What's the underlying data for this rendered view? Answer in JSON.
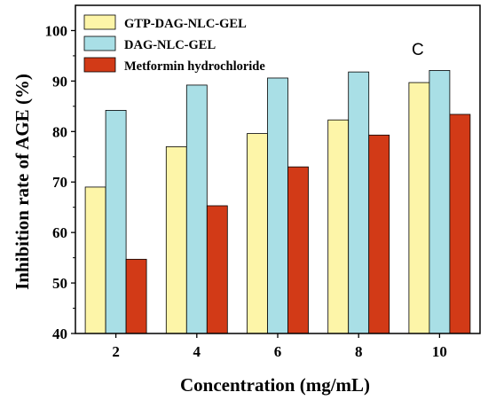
{
  "chart_data": {
    "type": "bar",
    "panel_label": "C",
    "xlabel": "Concentration (mg/mL)",
    "ylabel": "Inhibition rate of AGE (%)",
    "categories": [
      "2",
      "4",
      "6",
      "8",
      "10"
    ],
    "ylim": [
      40,
      105
    ],
    "yticks": [
      "40",
      "50",
      "60",
      "70",
      "80",
      "90",
      "100"
    ],
    "grid": false,
    "legend_position": "top-left",
    "series": [
      {
        "name": "GTP-DAG-NLC-GEL",
        "color": "#fdf5a8",
        "values": [
          69.0,
          77.0,
          79.6,
          82.3,
          89.7
        ]
      },
      {
        "name": "DAG-NLC-GEL",
        "color": "#a9dfe6",
        "values": [
          84.2,
          89.2,
          90.6,
          91.8,
          92.1
        ]
      },
      {
        "name": "Metformin hydrochloride",
        "color": "#d23a17",
        "values": [
          54.7,
          65.3,
          73.0,
          79.3,
          83.4
        ]
      }
    ]
  }
}
